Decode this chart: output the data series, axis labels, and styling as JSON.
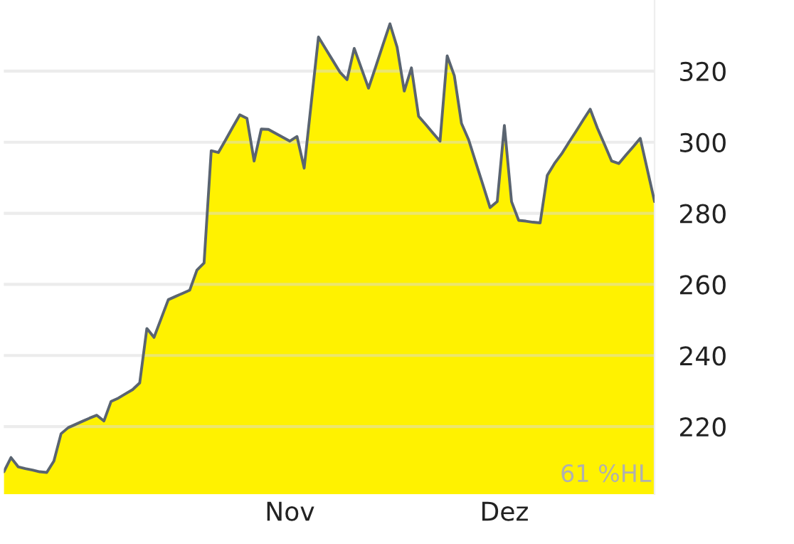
{
  "chart_data": {
    "type": "area",
    "categories": [
      null,
      null,
      null,
      null,
      null,
      null,
      null,
      null,
      null,
      null,
      null,
      null,
      null,
      null,
      null,
      null,
      null,
      null,
      null,
      null,
      null,
      null,
      null,
      null,
      null,
      null,
      null,
      null,
      null,
      null,
      null,
      null,
      null,
      null,
      null,
      null,
      null,
      null,
      null,
      null,
      "Nov",
      null,
      null,
      null,
      null,
      null,
      null,
      null,
      null,
      null,
      null,
      null,
      null,
      null,
      null,
      null,
      null,
      null,
      null,
      null,
      null,
      null,
      null,
      null,
      null,
      null,
      null,
      null,
      null,
      null,
      "Dez",
      null,
      null,
      null,
      null,
      null,
      null,
      null,
      null,
      null,
      null,
      null,
      null,
      null,
      null,
      null,
      null,
      null,
      null,
      null,
      null,
      null
    ],
    "series": [
      {
        "color": "#fff200",
        "values": [
          207.3,
          211.3,
          208.7,
          208.2,
          207.8,
          207.3,
          207.1,
          210.3,
          218,
          219.7,
          220.6,
          221.5,
          222.4,
          223.2,
          221.6,
          227.1,
          228,
          229.2,
          230.4,
          232.3,
          247.6,
          245.1,
          250.4,
          255.7,
          256.6,
          257.5,
          258.4,
          264,
          266,
          297.6,
          297.1,
          300.6,
          304.2,
          307.7,
          306.7,
          294.7,
          303.7,
          303.6,
          302.5,
          301.4,
          300.3,
          301.6,
          292.7,
          311.2,
          329.6,
          326.3,
          323,
          319.7,
          317.6,
          326.4,
          320.8,
          315.2,
          321.2,
          327.3,
          333.3,
          326.7,
          314.4,
          320.9,
          307.3,
          305,
          302.6,
          300.3,
          324.3,
          318.7,
          305.3,
          300.7,
          294.3,
          288,
          281.6,
          283.3,
          304.7,
          283.3,
          278,
          277.8,
          277.5,
          277.3,
          290.7,
          294,
          296.7,
          299.9,
          303,
          306.2,
          309.3,
          304,
          299.4,
          294.7,
          294,
          296.4,
          298.7,
          301.1,
          292.2,
          283.3
        ]
      }
    ],
    "ylim": [
      201,
      340
    ],
    "yticks": [
      220,
      240,
      260,
      280,
      300,
      320
    ],
    "grid": "y",
    "annotations": [
      "61 %HL"
    ]
  }
}
